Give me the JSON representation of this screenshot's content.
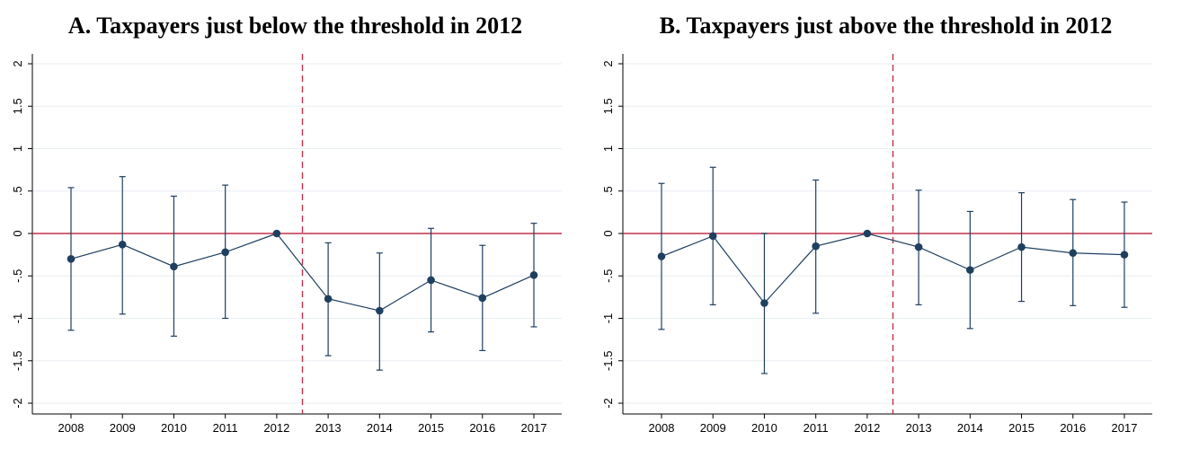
{
  "chart_data": [
    {
      "type": "scatter",
      "title": "A. Taxpayers just below the threshold in 2012",
      "xlabel": "",
      "ylabel": "",
      "x": [
        2008,
        2009,
        2010,
        2011,
        2012,
        2013,
        2014,
        2015,
        2016,
        2017
      ],
      "x_tick_labels": [
        "2008",
        "2009",
        "2010",
        "2011",
        "2012",
        "2013",
        "2014",
        "2015",
        "2016",
        "2017"
      ],
      "y_ticks": [
        -2,
        -1.5,
        -1,
        -0.5,
        0,
        0.5,
        1,
        1.5,
        2
      ],
      "y_tick_labels": [
        "-2",
        "-1.5",
        "-1",
        "-.5",
        "0",
        ".5",
        "1",
        "1.5",
        "2"
      ],
      "ylim": [
        -2.05,
        2.05
      ],
      "series": [
        {
          "estimate": [
            -0.3,
            -0.13,
            -0.39,
            -0.22,
            0,
            -0.77,
            -0.91,
            -0.55,
            -0.76,
            -0.49
          ],
          "ci_low": [
            -1.14,
            -0.95,
            -1.21,
            -1.0,
            0,
            -1.44,
            -1.61,
            -1.16,
            -1.38,
            -1.1
          ],
          "ci_high": [
            0.54,
            0.67,
            0.44,
            0.57,
            0,
            -0.11,
            -0.23,
            0.06,
            -0.14,
            0.12
          ]
        }
      ],
      "reference_line_y": 0,
      "event_line_x": 2012.5,
      "grid": true,
      "colors": {
        "series": "#1f3f5f",
        "zero_line": "#c0304a",
        "event_line": "#c0304a",
        "grid": "#e8eef2"
      }
    },
    {
      "type": "scatter",
      "title": "B. Taxpayers just above the threshold in 2012",
      "xlabel": "",
      "ylabel": "",
      "x": [
        2008,
        2009,
        2010,
        2011,
        2012,
        2013,
        2014,
        2015,
        2016,
        2017
      ],
      "x_tick_labels": [
        "2008",
        "2009",
        "2010",
        "2011",
        "2012",
        "2013",
        "2014",
        "2015",
        "2016",
        "2017"
      ],
      "y_ticks": [
        -2,
        -1.5,
        -1,
        -0.5,
        0,
        0.5,
        1,
        1.5,
        2
      ],
      "y_tick_labels": [
        "-2",
        "-1.5",
        "-1",
        "-.5",
        "0",
        ".5",
        "1",
        "1.5",
        "2"
      ],
      "ylim": [
        -2.05,
        2.05
      ],
      "series": [
        {
          "estimate": [
            -0.27,
            -0.03,
            -0.82,
            -0.15,
            0,
            -0.16,
            -0.43,
            -0.16,
            -0.23,
            -0.25
          ],
          "ci_low": [
            -1.13,
            -0.84,
            -1.65,
            -0.94,
            0,
            -0.84,
            -1.12,
            -0.8,
            -0.85,
            -0.87
          ],
          "ci_high": [
            0.59,
            0.78,
            0.0,
            0.63,
            0,
            0.51,
            0.26,
            0.48,
            0.4,
            0.37
          ]
        }
      ],
      "reference_line_y": 0,
      "event_line_x": 2012.5,
      "grid": true,
      "colors": {
        "series": "#1f3f5f",
        "zero_line": "#c0304a",
        "event_line": "#c0304a",
        "grid": "#e8eef2"
      }
    }
  ]
}
